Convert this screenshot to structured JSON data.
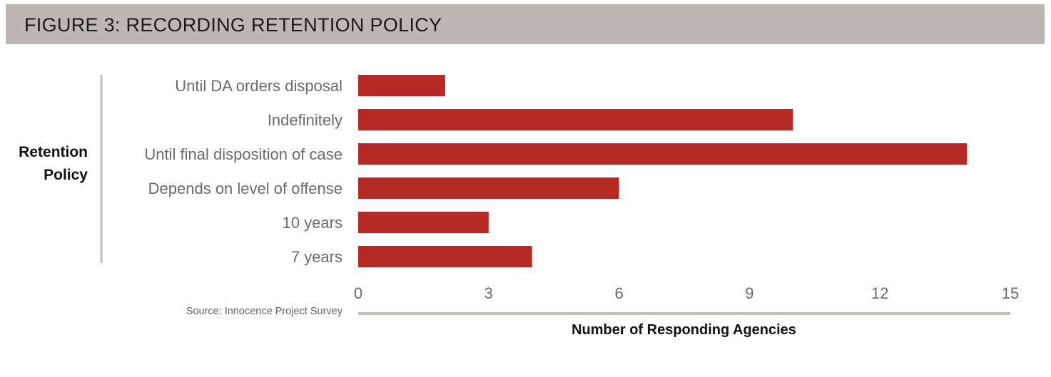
{
  "header": {
    "title": "FIGURE 3: RECORDING RETENTION POLICY"
  },
  "chart_data": {
    "type": "bar",
    "orientation": "horizontal",
    "categories": [
      "Until DA orders disposal",
      "Indefinitely",
      "Until final disposition of case",
      "Depends on level of offense",
      "10 years",
      "7 years"
    ],
    "values": [
      2,
      10,
      14,
      6,
      3,
      4
    ],
    "xlabel": "Number of Responding Agencies",
    "ylabel_lines": [
      "Retention",
      "Policy"
    ],
    "xlim": [
      0,
      15
    ],
    "xticks": [
      "0",
      "3",
      "6",
      "9",
      "12",
      "15"
    ],
    "grid": false,
    "source": "Source: Innocence Project Survey",
    "colors": {
      "bar": "#b52a25",
      "title_bar": "#bdb8b2",
      "axis_line": "#c5c0bb",
      "label_text": "#6b6b6b"
    }
  }
}
